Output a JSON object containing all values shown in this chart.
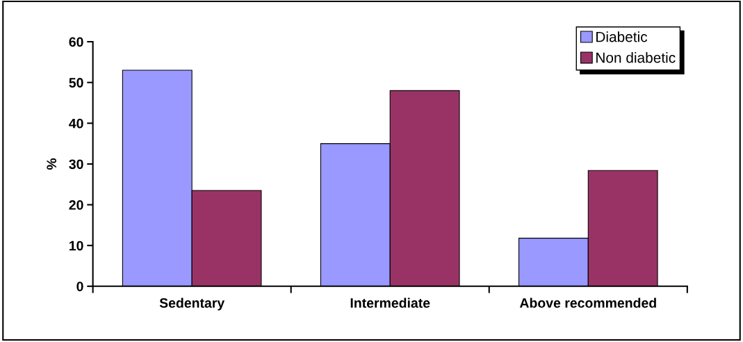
{
  "chart_data": {
    "type": "bar",
    "ylabel": "%",
    "categories": [
      "Sedentary",
      "Intermediate",
      "Above recommended"
    ],
    "series": [
      {
        "name": "Diabetic",
        "color": "#9999ff",
        "values": [
          53,
          35,
          11.8
        ]
      },
      {
        "name": "Non diabetic",
        "color": "#993366",
        "values": [
          23.5,
          48,
          28.4
        ]
      }
    ],
    "ylim": [
      0,
      60
    ],
    "yticks": [
      0,
      10,
      20,
      30,
      40,
      50,
      60
    ],
    "grid": false,
    "legend": "top right"
  }
}
